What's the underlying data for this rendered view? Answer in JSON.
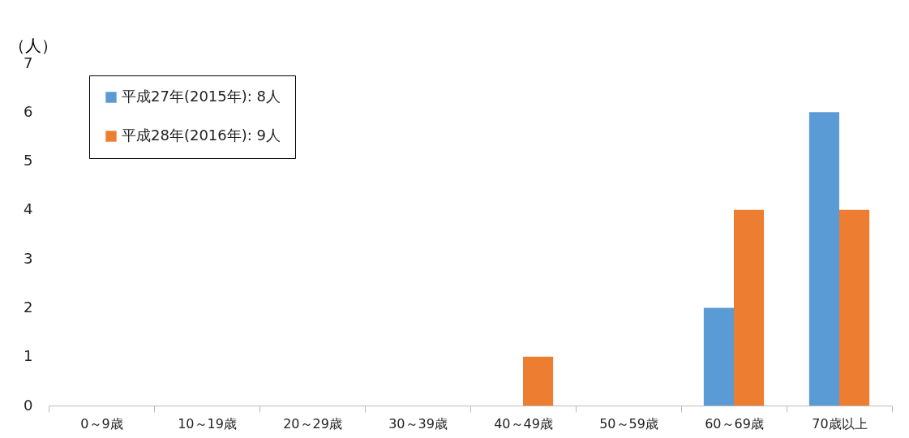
{
  "chart_data": {
    "type": "bar",
    "ylabel": "（人）",
    "categories": [
      "0～9歳",
      "10～19歳",
      "20～29歳",
      "30～39歳",
      "40～49歳",
      "50～59歳",
      "60～69歳",
      "70歳以上"
    ],
    "series": [
      {
        "name": "平成27年(2015年): 8人",
        "color": "#5b9bd5",
        "values": [
          0,
          0,
          0,
          0,
          0,
          0,
          2,
          6
        ]
      },
      {
        "name": "平成28年(2016年): 9人",
        "color": "#ed7d31",
        "values": [
          0,
          0,
          0,
          0,
          1,
          0,
          4,
          4
        ]
      }
    ],
    "ylim": [
      0,
      7
    ],
    "yticks": [
      0,
      1,
      2,
      3,
      4,
      5,
      6,
      7
    ],
    "grid": false,
    "legend": "top left"
  }
}
